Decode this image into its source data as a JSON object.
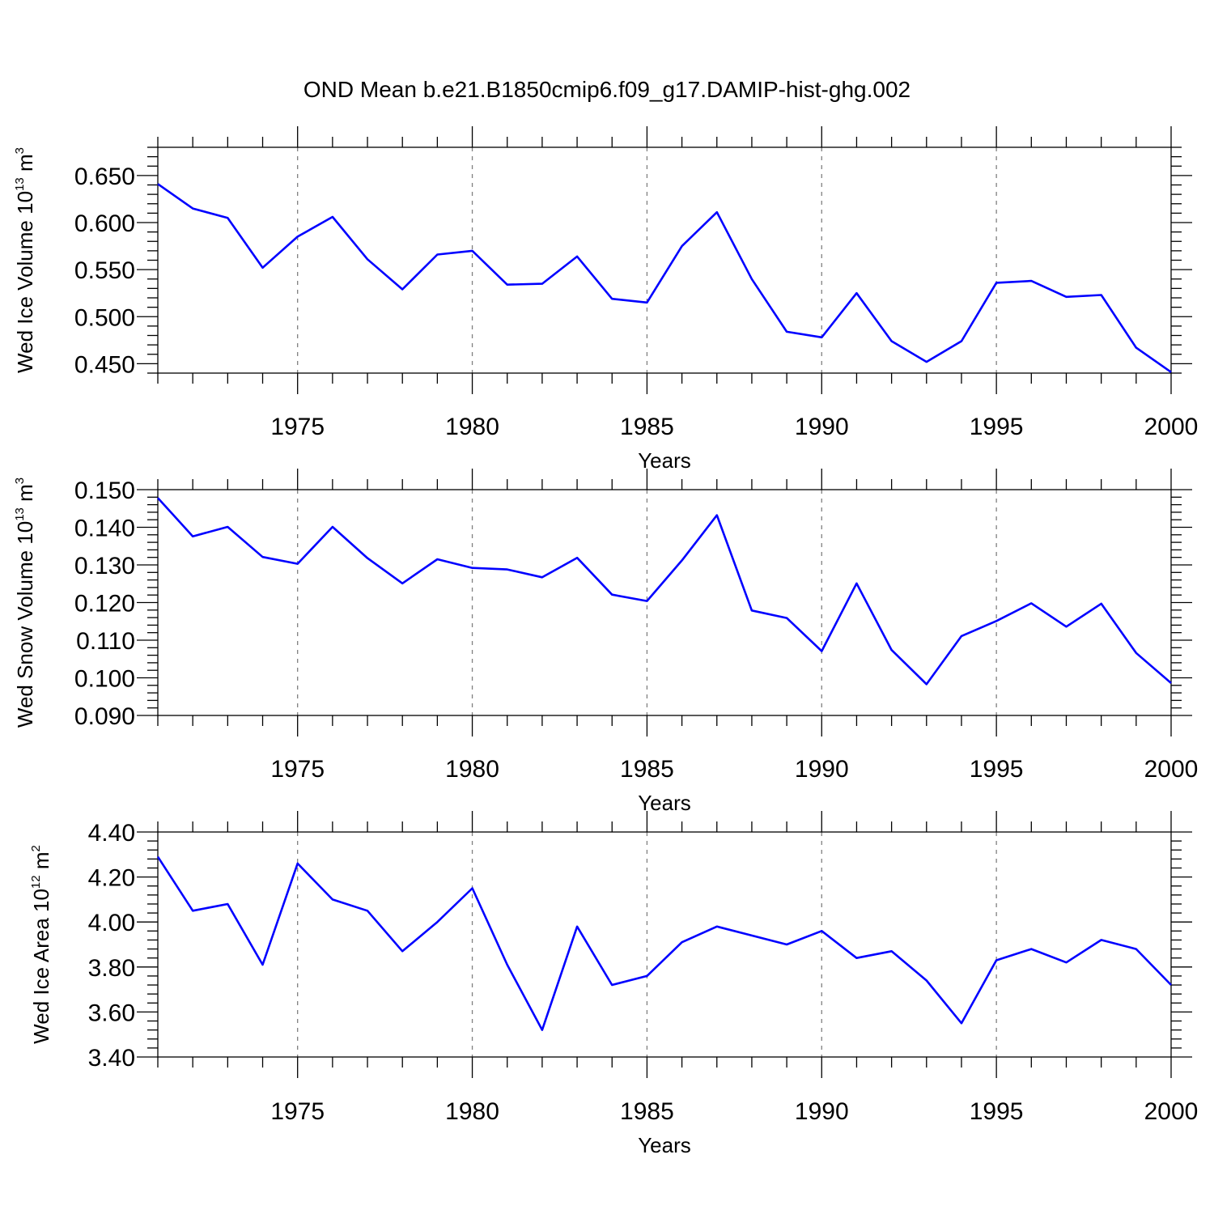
{
  "page_title": "OND Mean b.e21.B1850cmip6.f09_g17.DAMIP-hist-ghg.002",
  "colors": {
    "line": "#0000ff",
    "axis": "#000000",
    "grid": "#808080",
    "background": "#ffffff"
  },
  "chart_data": [
    {
      "type": "line",
      "title": "",
      "xlabel": "Years",
      "ylabel_parts": {
        "prefix": "Wed Ice Volume 10",
        "exponent": "13",
        "unit": " m",
        "unit_exponent": "3"
      },
      "xlim": [
        1971,
        2000
      ],
      "ylim": [
        0.44,
        0.68
      ],
      "xticks": [
        "1975",
        "1980",
        "1985",
        "1990",
        "1995",
        "2000"
      ],
      "yticks": [
        "0.450",
        "0.500",
        "0.550",
        "0.600",
        "0.650"
      ],
      "grid": "vertical dashed at major x ticks",
      "x": [
        1971,
        1972,
        1973,
        1974,
        1975,
        1976,
        1977,
        1978,
        1979,
        1980,
        1981,
        1982,
        1983,
        1984,
        1985,
        1986,
        1987,
        1988,
        1989,
        1990,
        1991,
        1992,
        1993,
        1994,
        1995,
        1996,
        1997,
        1998,
        1999,
        2000
      ],
      "series": [
        {
          "values": [
            0.641,
            0.615,
            0.605,
            0.552,
            0.585,
            0.606,
            0.561,
            0.529,
            0.566,
            0.57,
            0.534,
            0.535,
            0.564,
            0.519,
            0.515,
            0.575,
            0.611,
            0.54,
            0.484,
            0.478,
            0.525,
            0.474,
            0.452,
            0.474,
            0.536,
            0.538,
            0.521,
            0.523,
            0.467,
            0.441
          ]
        }
      ]
    },
    {
      "type": "line",
      "title": "",
      "xlabel": "Years",
      "ylabel_parts": {
        "prefix": "Wed Snow Volume 10",
        "exponent": "13",
        "unit": " m",
        "unit_exponent": "3"
      },
      "xlim": [
        1971,
        2000
      ],
      "ylim": [
        0.09,
        0.15
      ],
      "xticks": [
        "1975",
        "1980",
        "1985",
        "1990",
        "1995",
        "2000"
      ],
      "yticks": [
        "0.090",
        "0.100",
        "0.110",
        "0.120",
        "0.130",
        "0.140",
        "0.150"
      ],
      "grid": "vertical dashed at major x ticks",
      "x": [
        1971,
        1972,
        1973,
        1974,
        1975,
        1976,
        1977,
        1978,
        1979,
        1980,
        1981,
        1982,
        1983,
        1984,
        1985,
        1986,
        1987,
        1988,
        1989,
        1990,
        1991,
        1992,
        1993,
        1994,
        1995,
        1996,
        1997,
        1998,
        1999,
        2000
      ],
      "series": [
        {
          "values": [
            0.1478,
            0.1376,
            0.1401,
            0.1321,
            0.1303,
            0.1401,
            0.1318,
            0.1251,
            0.1315,
            0.1292,
            0.1288,
            0.1267,
            0.1319,
            0.1221,
            0.1204,
            0.1312,
            0.1432,
            0.1179,
            0.1159,
            0.1071,
            0.1251,
            0.1074,
            0.0983,
            0.1111,
            0.1151,
            0.1198,
            0.1136,
            0.1197,
            0.1066,
            0.0986
          ]
        }
      ]
    },
    {
      "type": "line",
      "title": "",
      "xlabel": "Years",
      "ylabel_parts": {
        "prefix": "Wed Ice Area 10",
        "exponent": "12",
        "unit": " m",
        "unit_exponent": "2"
      },
      "xlim": [
        1971,
        2000
      ],
      "ylim": [
        3.4,
        4.4
      ],
      "xticks": [
        "1975",
        "1980",
        "1985",
        "1990",
        "1995",
        "2000"
      ],
      "yticks": [
        "3.40",
        "3.60",
        "3.80",
        "4.00",
        "4.20",
        "4.40"
      ],
      "grid": "vertical dashed at major x ticks",
      "x": [
        1971,
        1972,
        1973,
        1974,
        1975,
        1976,
        1977,
        1978,
        1979,
        1980,
        1981,
        1982,
        1983,
        1984,
        1985,
        1986,
        1987,
        1988,
        1989,
        1990,
        1991,
        1992,
        1993,
        1994,
        1995,
        1996,
        1997,
        1998,
        1999,
        2000
      ],
      "series": [
        {
          "values": [
            4.29,
            4.05,
            4.08,
            3.81,
            4.26,
            4.1,
            4.05,
            3.87,
            4.0,
            4.15,
            3.81,
            3.52,
            3.98,
            3.72,
            3.76,
            3.91,
            3.98,
            3.94,
            3.9,
            3.96,
            3.84,
            3.87,
            3.74,
            3.55,
            3.83,
            3.88,
            3.82,
            3.92,
            3.88,
            3.72
          ]
        }
      ]
    }
  ]
}
